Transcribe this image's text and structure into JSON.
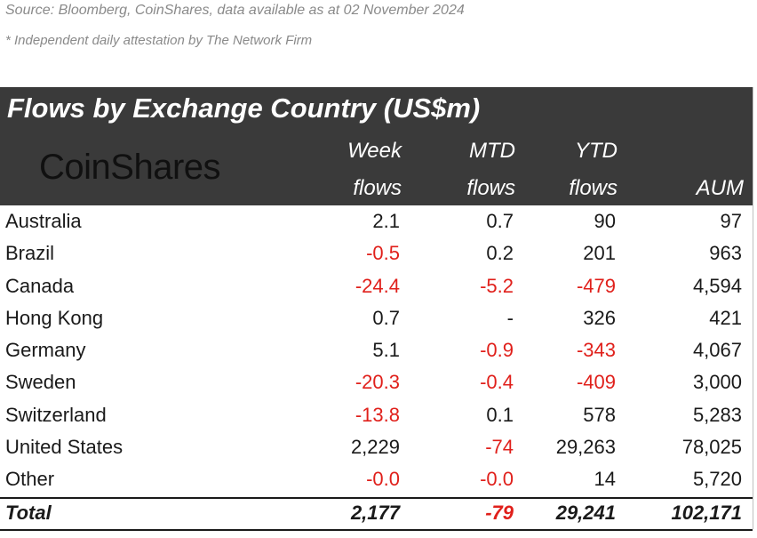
{
  "source_line": "Source: Bloomberg, CoinShares, data available as at 02 November 2024",
  "note_line": "* Independent daily attestation by The Network Firm",
  "brand": "CoinShares",
  "colors": {
    "header_bg": "#3a3a3a",
    "negative": "#e0201b"
  },
  "chart_data": {
    "type": "table",
    "title": "Flows by Exchange Country (US$m)",
    "columns": [
      {
        "top": "Week",
        "bottom": "flows"
      },
      {
        "top": "MTD",
        "bottom": "flows"
      },
      {
        "top": "YTD",
        "bottom": "flows"
      },
      {
        "top": "",
        "bottom": "AUM"
      }
    ],
    "rows": [
      {
        "label": "Australia",
        "values": [
          "2.1",
          "0.7",
          "90",
          "97"
        ]
      },
      {
        "label": "Brazil",
        "values": [
          "-0.5",
          "0.2",
          "201",
          "963"
        ]
      },
      {
        "label": "Canada",
        "values": [
          "-24.4",
          "-5.2",
          "-479",
          "4,594"
        ]
      },
      {
        "label": "Hong Kong",
        "values": [
          "0.7",
          "-",
          "326",
          "421"
        ]
      },
      {
        "label": "Germany",
        "values": [
          "5.1",
          "-0.9",
          "-343",
          "4,067"
        ]
      },
      {
        "label": "Sweden",
        "values": [
          "-20.3",
          "-0.4",
          "-409",
          "3,000"
        ]
      },
      {
        "label": "Switzerland",
        "values": [
          "-13.8",
          "0.1",
          "578",
          "5,283"
        ]
      },
      {
        "label": "United States",
        "values": [
          "2,229",
          "-74",
          "29,263",
          "78,025"
        ]
      },
      {
        "label": "Other",
        "values": [
          "-0.0",
          "-0.0",
          "14",
          "5,720"
        ]
      }
    ],
    "total": {
      "label": "Total",
      "values": [
        "2,177",
        "-79",
        "29,241",
        "102,171"
      ]
    }
  }
}
